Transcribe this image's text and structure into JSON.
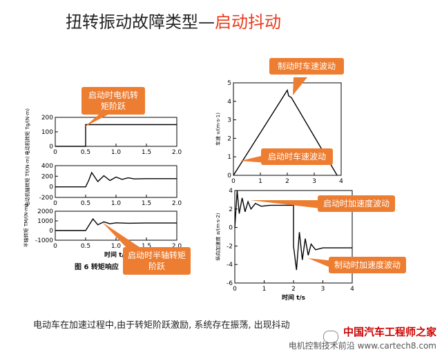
{
  "title": {
    "main": "扭转振动故障类型—",
    "highlight": "启动抖动"
  },
  "callouts": {
    "motor_torque": "启动时电机转矩阶跃",
    "halfshaft_torque": "启动时半轴转矩阶跃",
    "speed_wave_top": "制动时车速波动",
    "speed_wave_mid": "启动时车速波动",
    "accel_wave_start": "启动时加速度波动",
    "accel_wave_brake": "制动时加速度波动"
  },
  "figure_label": "图 6    转矩响应",
  "caption": "电动车在加速过程中,由于转矩阶跃激励, 系统存在振荡, 出现抖动",
  "watermark": {
    "line1": "中国汽车工程师之家",
    "line2": "电机控制技术前沿 www.cartech8.com"
  },
  "colors": {
    "accent": "#ed7d31",
    "title_highlight": "#e8391a"
  },
  "chart_data": [
    {
      "type": "line",
      "ylabel": "电动机转矩 Tg/(N·m)",
      "xlim": [
        0,
        2.0
      ],
      "ylim": [
        0,
        200
      ],
      "xticks": [
        "0",
        "0.5",
        "1.0",
        "1.5",
        "2.0"
      ],
      "yticks": [
        "0",
        "100",
        "200"
      ],
      "x": [
        0,
        0.5,
        0.5,
        0.7,
        2.0
      ],
      "y": [
        0,
        0,
        150,
        150,
        150
      ]
    },
    {
      "type": "line",
      "ylabel": "电动机轴转矩 Tf/(N·m)",
      "xlim": [
        0,
        2.0
      ],
      "ylim": [
        -200,
        400
      ],
      "xticks": [
        "0",
        "0.5",
        "1.0",
        "1.5",
        "2.0"
      ],
      "yticks": [
        "-200",
        "0",
        "200",
        "400"
      ],
      "x": [
        0,
        0.5,
        0.55,
        0.6,
        0.7,
        0.8,
        0.9,
        1.0,
        1.1,
        1.2,
        1.3,
        1.5,
        2.0
      ],
      "y": [
        0,
        0,
        120,
        270,
        100,
        210,
        120,
        185,
        140,
        170,
        150,
        155,
        155
      ]
    },
    {
      "type": "line",
      "ylabel": "半轴转矩 TM/(N·m)",
      "xlabel": "时间 t/s",
      "xlim": [
        0,
        2.0
      ],
      "ylim": [
        -1000,
        2000
      ],
      "xticks": [
        "0",
        "0.5",
        "1.0",
        "1.5",
        "2.0"
      ],
      "yticks": [
        "-1000",
        "0",
        "1000",
        "2000"
      ],
      "x": [
        0,
        0.5,
        0.55,
        0.62,
        0.7,
        0.8,
        0.9,
        1.0,
        1.2,
        1.5,
        2.0
      ],
      "y": [
        0,
        0,
        500,
        1200,
        600,
        900,
        700,
        800,
        760,
        780,
        780
      ]
    },
    {
      "type": "line",
      "ylabel": "车速 v/(m·s-1)",
      "xlim": [
        0,
        4
      ],
      "ylim": [
        0,
        5
      ],
      "xticks": [
        "0",
        "1",
        "2",
        "3",
        "4"
      ],
      "yticks": [
        "0",
        "1",
        "2",
        "3",
        "4",
        "5"
      ],
      "x": [
        0,
        2.0,
        2.05,
        2.15,
        3.85
      ],
      "y": [
        0,
        4.6,
        4.3,
        4.2,
        0
      ]
    },
    {
      "type": "line",
      "ylabel": "纵向加速度 a/(m·s-2)",
      "xlabel": "时间 t/s",
      "xlim": [
        0,
        4
      ],
      "ylim": [
        -6,
        4
      ],
      "xticks": [
        "0",
        "1",
        "2",
        "3",
        "4"
      ],
      "yticks": [
        "-6",
        "-4",
        "-2",
        "0",
        "2",
        "4"
      ],
      "x": [
        0,
        0.08,
        0.15,
        0.25,
        0.35,
        0.45,
        0.55,
        0.7,
        0.9,
        1.2,
        2.0,
        2.0,
        2.1,
        2.2,
        2.3,
        2.4,
        2.5,
        2.6,
        2.75,
        3.0,
        3.5,
        4.0
      ],
      "y": [
        0,
        4,
        1.5,
        3.2,
        1.7,
        2.8,
        2.0,
        2.6,
        2.3,
        2.4,
        2.4,
        -2.0,
        -4.6,
        -0.5,
        -3.5,
        -1.2,
        -3.0,
        -1.8,
        -2.4,
        -2.2,
        -2.2,
        -2.2
      ]
    }
  ]
}
